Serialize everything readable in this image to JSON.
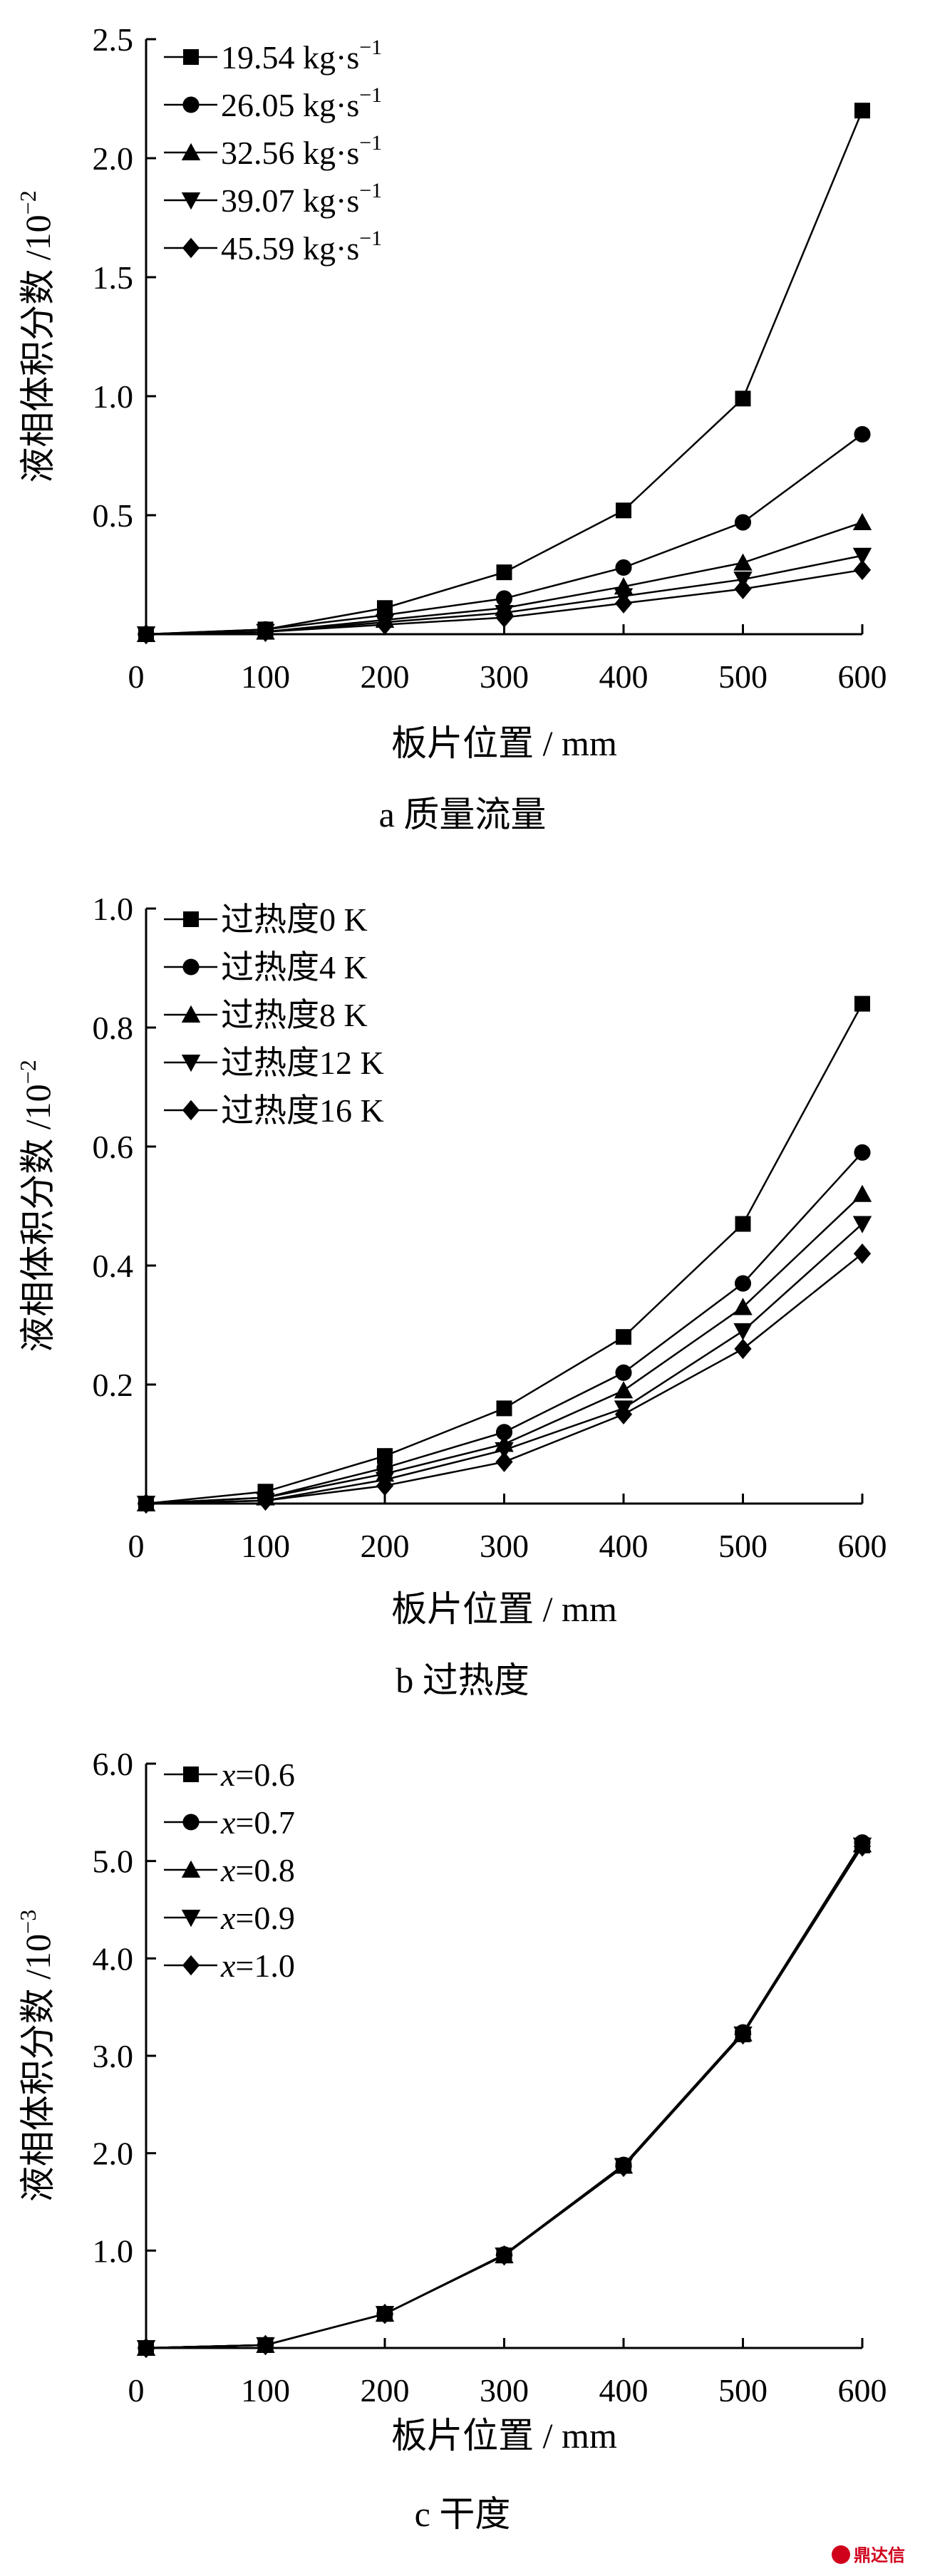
{
  "chart_data": [
    {
      "type": "line",
      "caption": "a  质量流量",
      "xlabel": "板片位置 / mm",
      "ylabel": "液相体积分数 /10",
      "ylabel_exp": "−2",
      "xlim": [
        0,
        600
      ],
      "ylim": [
        0,
        2.5
      ],
      "xticks": [
        {
          "v": 0,
          "label": "0"
        },
        {
          "v": 100,
          "label": "100"
        },
        {
          "v": 200,
          "label": "200"
        },
        {
          "v": 300,
          "label": "300"
        },
        {
          "v": 400,
          "label": "400"
        },
        {
          "v": 500,
          "label": "500"
        },
        {
          "v": 600,
          "label": "600"
        }
      ],
      "yticks": [
        {
          "v": 0.5,
          "label": "0.5"
        },
        {
          "v": 1.0,
          "label": "1.0"
        },
        {
          "v": 1.5,
          "label": "1.5"
        },
        {
          "v": 2.0,
          "label": "2.0"
        },
        {
          "v": 2.5,
          "label": "2.5"
        }
      ],
      "x": [
        0,
        100,
        200,
        300,
        400,
        500,
        600
      ],
      "series": [
        {
          "name": "19.54 kg·s",
          "exp": "−1",
          "marker": "square",
          "values": [
            0,
            0.02,
            0.11,
            0.26,
            0.52,
            0.99,
            2.2
          ]
        },
        {
          "name": "26.05 kg·s",
          "exp": "−1",
          "marker": "circle",
          "values": [
            0,
            0.02,
            0.08,
            0.15,
            0.28,
            0.47,
            0.84
          ]
        },
        {
          "name": "32.56 kg·s",
          "exp": "−1",
          "marker": "triangle-up",
          "values": [
            0,
            0.01,
            0.06,
            0.11,
            0.2,
            0.3,
            0.47
          ]
        },
        {
          "name": "39.07 kg·s",
          "exp": "−1",
          "marker": "triangle-down",
          "values": [
            0,
            0.01,
            0.05,
            0.09,
            0.16,
            0.23,
            0.33
          ]
        },
        {
          "name": "45.59 kg·s",
          "exp": "−1",
          "marker": "diamond",
          "values": [
            0,
            0.01,
            0.04,
            0.07,
            0.13,
            0.19,
            0.27
          ]
        }
      ]
    },
    {
      "type": "line",
      "caption": "b  过热度",
      "xlabel": "板片位置 / mm",
      "ylabel": "液相体积分数 /10",
      "ylabel_exp": "−2",
      "xlim": [
        0,
        600
      ],
      "ylim": [
        0,
        1.0
      ],
      "xticks": [
        {
          "v": 0,
          "label": "0"
        },
        {
          "v": 100,
          "label": "100"
        },
        {
          "v": 200,
          "label": "200"
        },
        {
          "v": 300,
          "label": "300"
        },
        {
          "v": 400,
          "label": "400"
        },
        {
          "v": 500,
          "label": "500"
        },
        {
          "v": 600,
          "label": "600"
        }
      ],
      "yticks": [
        {
          "v": 0.2,
          "label": "0.2"
        },
        {
          "v": 0.4,
          "label": "0.4"
        },
        {
          "v": 0.6,
          "label": "0.6"
        },
        {
          "v": 0.8,
          "label": "0.8"
        },
        {
          "v": 1.0,
          "label": "1.0"
        }
      ],
      "x": [
        0,
        100,
        200,
        300,
        400,
        500,
        600
      ],
      "series": [
        {
          "name": "过热度0 K",
          "marker": "square",
          "values": [
            0,
            0.02,
            0.08,
            0.16,
            0.28,
            0.47,
            0.84
          ]
        },
        {
          "name": "过热度4 K",
          "marker": "circle",
          "values": [
            0,
            0.01,
            0.06,
            0.12,
            0.22,
            0.37,
            0.59
          ]
        },
        {
          "name": "过热度8 K",
          "marker": "triangle-up",
          "values": [
            0,
            0.01,
            0.05,
            0.1,
            0.19,
            0.33,
            0.52
          ]
        },
        {
          "name": "过热度12 K",
          "marker": "triangle-down",
          "values": [
            0,
            0.005,
            0.04,
            0.09,
            0.16,
            0.29,
            0.47
          ]
        },
        {
          "name": "过热度16 K",
          "marker": "diamond",
          "values": [
            0,
            0.005,
            0.03,
            0.07,
            0.15,
            0.26,
            0.42
          ]
        }
      ]
    },
    {
      "type": "line",
      "caption": "c  干度",
      "xlabel": "板片位置 / mm",
      "ylabel": "液相体积分数 /10",
      "ylabel_exp": "−3",
      "xlim": [
        0,
        600
      ],
      "ylim": [
        0,
        6.0
      ],
      "xticks": [
        {
          "v": 0,
          "label": "0"
        },
        {
          "v": 100,
          "label": "100"
        },
        {
          "v": 200,
          "label": "200"
        },
        {
          "v": 300,
          "label": "300"
        },
        {
          "v": 400,
          "label": "400"
        },
        {
          "v": 500,
          "label": "500"
        },
        {
          "v": 600,
          "label": "600"
        }
      ],
      "yticks": [
        {
          "v": 1.0,
          "label": "1.0"
        },
        {
          "v": 2.0,
          "label": "2.0"
        },
        {
          "v": 3.0,
          "label": "3.0"
        },
        {
          "v": 4.0,
          "label": "4.0"
        },
        {
          "v": 5.0,
          "label": "5.0"
        },
        {
          "v": 6.0,
          "label": "6.0"
        }
      ],
      "x": [
        0,
        100,
        200,
        300,
        400,
        500,
        600
      ],
      "series": [
        {
          "name": "x",
          "suffix": "=0.6",
          "marker": "square",
          "values": [
            0,
            0.03,
            0.35,
            0.95,
            1.87,
            3.22,
            5.16
          ]
        },
        {
          "name": "x",
          "suffix": "=0.7",
          "marker": "circle",
          "values": [
            0,
            0.03,
            0.35,
            0.96,
            1.88,
            3.24,
            5.19
          ]
        },
        {
          "name": "x",
          "suffix": "=0.8",
          "marker": "triangle-up",
          "values": [
            0,
            0.03,
            0.35,
            0.95,
            1.87,
            3.23,
            5.17
          ]
        },
        {
          "name": "x",
          "suffix": "=0.9",
          "marker": "triangle-down",
          "values": [
            0,
            0.03,
            0.35,
            0.95,
            1.87,
            3.22,
            5.16
          ]
        },
        {
          "name": "x",
          "suffix": "=1.0",
          "marker": "diamond",
          "values": [
            0,
            0.03,
            0.35,
            0.95,
            1.86,
            3.22,
            5.15
          ]
        }
      ]
    }
  ],
  "watermark": {
    "text": "鼎达信"
  },
  "colors": {
    "line": "#000000",
    "logo": "#d0021b"
  }
}
